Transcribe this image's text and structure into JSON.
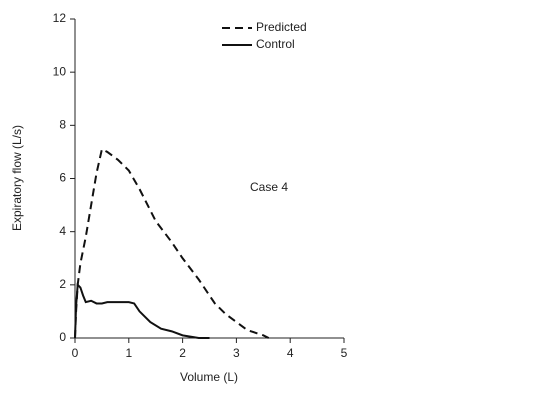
{
  "chart_data": {
    "type": "line",
    "xlabel": "Volume (L)",
    "ylabel": "Expiratory flow (L/s)",
    "annotation": "Case 4",
    "xlim": [
      0,
      5
    ],
    "xticks": [
      0,
      1,
      2,
      3,
      4,
      5
    ],
    "ylim": [
      0,
      12
    ],
    "yticks": [
      0,
      2,
      4,
      6,
      8,
      10,
      12
    ],
    "series": [
      {
        "name": "Predicted",
        "color": "#111111",
        "dash": true,
        "x": [
          0,
          0.02,
          0.05,
          0.1,
          0.2,
          0.3,
          0.4,
          0.5,
          0.6,
          0.8,
          1.0,
          1.2,
          1.5,
          1.8,
          2.0,
          2.3,
          2.6,
          2.8,
          3.0,
          3.2,
          3.5,
          3.6
        ],
        "values": [
          0,
          1,
          2,
          2.8,
          3.8,
          5,
          6.2,
          7.1,
          7.0,
          6.7,
          6.3,
          5.6,
          4.4,
          3.6,
          3.0,
          2.2,
          1.3,
          0.9,
          0.6,
          0.3,
          0.1,
          0
        ]
      },
      {
        "name": "Control",
        "color": "#111111",
        "dash": false,
        "x": [
          0,
          0.02,
          0.05,
          0.1,
          0.15,
          0.2,
          0.3,
          0.4,
          0.5,
          0.6,
          1.0,
          1.1,
          1.2,
          1.4,
          1.6,
          1.8,
          2.0,
          2.3,
          2.5
        ],
        "values": [
          0,
          1.2,
          2.0,
          1.9,
          1.6,
          1.35,
          1.4,
          1.3,
          1.3,
          1.35,
          1.35,
          1.3,
          1.0,
          0.6,
          0.35,
          0.25,
          0.1,
          0,
          0
        ]
      }
    ]
  }
}
